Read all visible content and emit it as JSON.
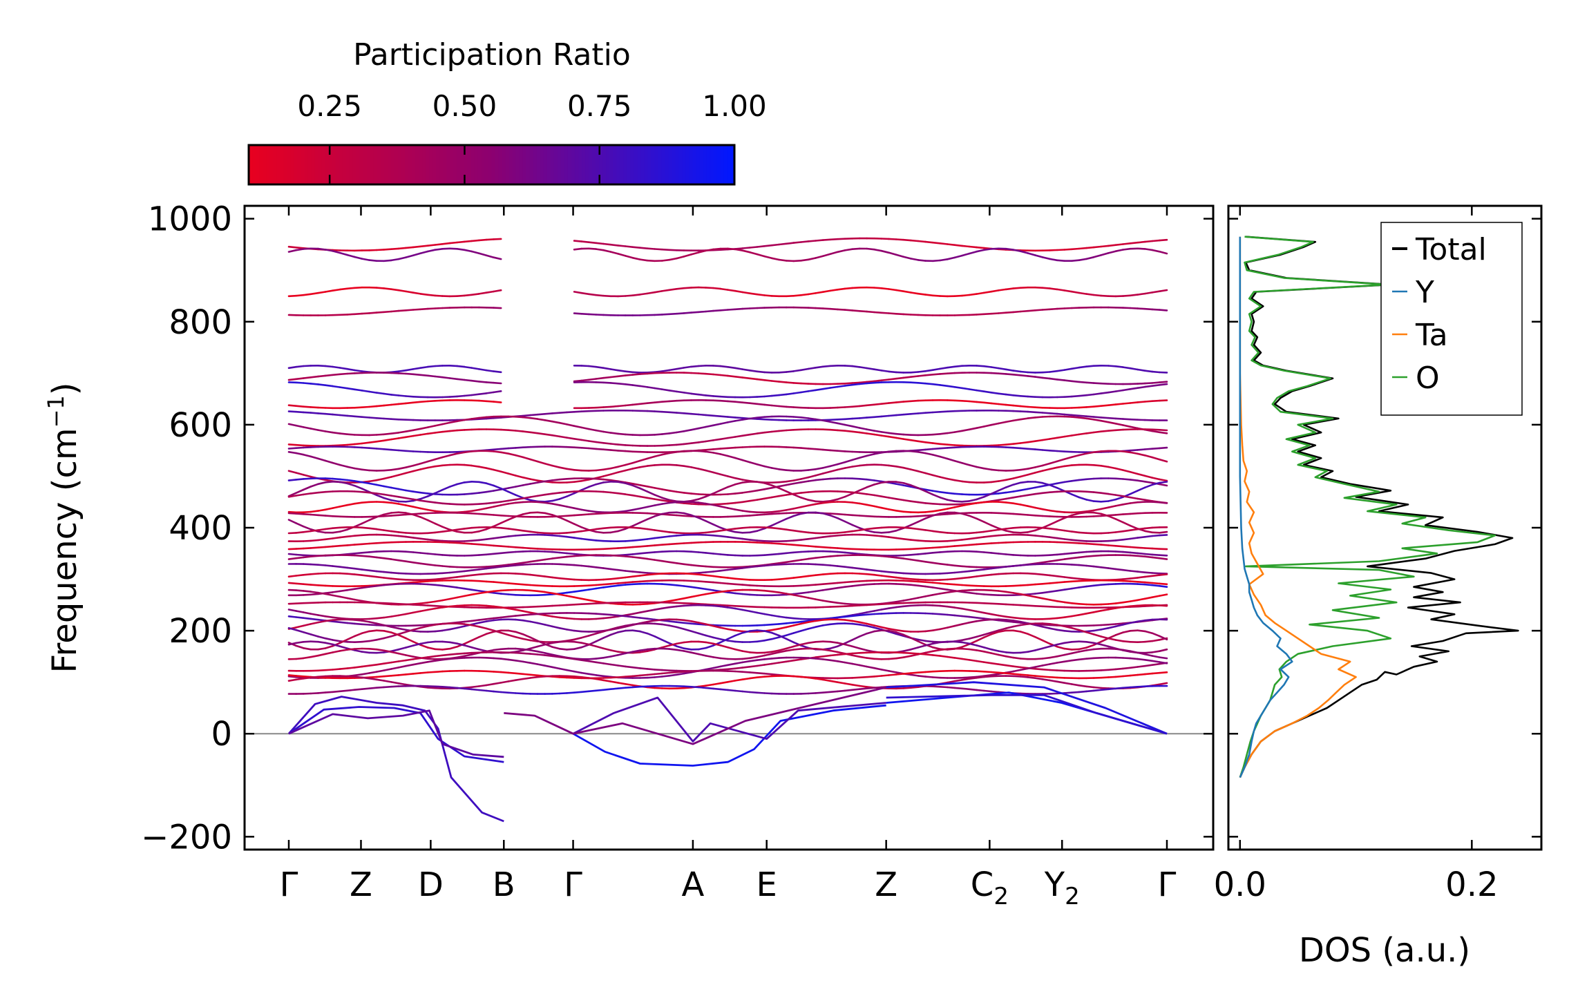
{
  "colorbar": {
    "title": "Participation Ratio",
    "ticks": [
      "0.25",
      "0.50",
      "0.75",
      "1.00"
    ],
    "tick_values": [
      0.25,
      0.5,
      0.75,
      1.0
    ],
    "range": [
      0.1,
      1.0
    ],
    "color_low": "#e8001f",
    "color_mid": "#8c0070",
    "color_high": "#0018ff"
  },
  "chart_data": [
    {
      "type": "line",
      "name": "phonon-band-structure",
      "ylabel": "Frequency (cm",
      "ylabel_sup": "−1",
      "ylabel_close": ")",
      "ylim": [
        -225,
        1025
      ],
      "yticks": [
        -200,
        0,
        200,
        400,
        600,
        800,
        1000
      ],
      "ytick_labels": [
        "−200",
        "0",
        "200",
        "400",
        "600",
        "800",
        "1000"
      ],
      "kpoint_labels": [
        {
          "main": "Γ",
          "sub": ""
        },
        {
          "main": "Z",
          "sub": ""
        },
        {
          "main": "D",
          "sub": ""
        },
        {
          "main": "B",
          "sub": ""
        },
        {
          "main": "Γ",
          "sub": ""
        },
        {
          "main": "A",
          "sub": ""
        },
        {
          "main": "E",
          "sub": ""
        },
        {
          "main": "Z",
          "sub": ""
        },
        {
          "main": "C",
          "sub": "2"
        },
        {
          "main": "Y",
          "sub": "2"
        },
        {
          "main": "Γ",
          "sub": ""
        }
      ],
      "kpoint_positions": [
        0.0,
        0.0822,
        0.1616,
        0.2449,
        0.3238,
        0.4602,
        0.5442,
        0.6803,
        0.7981,
        0.8806,
        1.0
      ],
      "path_breaks": [
        3
      ],
      "zero_line": 0,
      "optical_bands_cm1": [
        950,
        930,
        858,
        820,
        708,
        690,
        668,
        640,
        618,
        598,
        575,
        552,
        530,
        505,
        480,
        470,
        458,
        440,
        425,
        410,
        395,
        380,
        365,
        350,
        335,
        320,
        305,
        292,
        280,
        265,
        250,
        236,
        222,
        210,
        196,
        182,
        168,
        155,
        140,
        128,
        115,
        100,
        85
      ],
      "acoustic_branches": {
        "max_freq_cm1": [
          72,
          52,
          38
        ],
        "min_negative_cm1": [
          -170,
          -55,
          -45
        ],
        "gamma_a_dip_cm1": -62,
        "a_e_dip_cm1": -30
      }
    },
    {
      "type": "line",
      "name": "phonon-dos",
      "xlabel": "DOS (a.u.)",
      "xlim": [
        -0.01,
        0.26
      ],
      "xticks": [
        0.0,
        0.2
      ],
      "xtick_labels": [
        "0.0",
        "0.2"
      ],
      "ylim": [
        -225,
        1025
      ],
      "series": [
        {
          "name": "Total",
          "color": "#000000",
          "points": [
            [
              0.0,
              -85
            ],
            [
              0.004,
              -65
            ],
            [
              0.01,
              -40
            ],
            [
              0.018,
              -15
            ],
            [
              0.03,
              5
            ],
            [
              0.045,
              20
            ],
            [
              0.06,
              35
            ],
            [
              0.075,
              50
            ],
            [
              0.085,
              65
            ],
            [
              0.095,
              80
            ],
            [
              0.105,
              95
            ],
            [
              0.118,
              105
            ],
            [
              0.125,
              120
            ],
            [
              0.135,
              115
            ],
            [
              0.15,
              130
            ],
            [
              0.17,
              140
            ],
            [
              0.155,
              150
            ],
            [
              0.18,
              160
            ],
            [
              0.148,
              170
            ],
            [
              0.175,
              180
            ],
            [
              0.195,
              195
            ],
            [
              0.24,
              200
            ],
            [
              0.205,
              210
            ],
            [
              0.165,
              222
            ],
            [
              0.185,
              232
            ],
            [
              0.145,
              245
            ],
            [
              0.19,
              255
            ],
            [
              0.15,
              265
            ],
            [
              0.175,
              275
            ],
            [
              0.15,
              285
            ],
            [
              0.185,
              300
            ],
            [
              0.165,
              312
            ],
            [
              0.11,
              325
            ],
            [
              0.16,
              340
            ],
            [
              0.185,
              355
            ],
            [
              0.22,
              368
            ],
            [
              0.235,
              380
            ],
            [
              0.205,
              392
            ],
            [
              0.16,
              405
            ],
            [
              0.175,
              420
            ],
            [
              0.12,
              432
            ],
            [
              0.145,
              445
            ],
            [
              0.1,
              460
            ],
            [
              0.13,
              472
            ],
            [
              0.095,
              485
            ],
            [
              0.07,
              498
            ],
            [
              0.08,
              510
            ],
            [
              0.055,
              522
            ],
            [
              0.07,
              535
            ],
            [
              0.05,
              548
            ],
            [
              0.065,
              560
            ],
            [
              0.045,
              572
            ],
            [
              0.07,
              585
            ],
            [
              0.055,
              600
            ],
            [
              0.085,
              612
            ],
            [
              0.04,
              625
            ],
            [
              0.03,
              640
            ],
            [
              0.035,
              652
            ],
            [
              0.045,
              665
            ],
            [
              0.06,
              675
            ],
            [
              0.08,
              690
            ],
            [
              0.04,
              705
            ],
            [
              0.02,
              715
            ],
            [
              0.012,
              725
            ],
            [
              0.018,
              740
            ],
            [
              0.012,
              755
            ],
            [
              0.015,
              770
            ],
            [
              0.01,
              782
            ],
            [
              0.012,
              800
            ],
            [
              0.01,
              815
            ],
            [
              0.02,
              830
            ],
            [
              0.01,
              845
            ],
            [
              0.014,
              858
            ],
            [
              0.13,
              872
            ],
            [
              0.04,
              885
            ],
            [
              0.008,
              900
            ],
            [
              0.005,
              915
            ],
            [
              0.035,
              930
            ],
            [
              0.055,
              945
            ],
            [
              0.065,
              955
            ],
            [
              0.005,
              965
            ]
          ]
        },
        {
          "name": "Y",
          "color": "#1f77b4",
          "points": [
            [
              0.0,
              -85
            ],
            [
              0.004,
              -65
            ],
            [
              0.008,
              -40
            ],
            [
              0.01,
              -15
            ],
            [
              0.012,
              5
            ],
            [
              0.014,
              20
            ],
            [
              0.018,
              35
            ],
            [
              0.022,
              50
            ],
            [
              0.026,
              65
            ],
            [
              0.032,
              80
            ],
            [
              0.038,
              95
            ],
            [
              0.042,
              110
            ],
            [
              0.035,
              125
            ],
            [
              0.045,
              140
            ],
            [
              0.04,
              155
            ],
            [
              0.032,
              170
            ],
            [
              0.035,
              185
            ],
            [
              0.028,
              200
            ],
            [
              0.02,
              215
            ],
            [
              0.015,
              230
            ],
            [
              0.012,
              245
            ],
            [
              0.01,
              260
            ],
            [
              0.008,
              275
            ],
            [
              0.008,
              290
            ],
            [
              0.006,
              305
            ],
            [
              0.004,
              320
            ],
            [
              0.003,
              340
            ],
            [
              0.002,
              360
            ],
            [
              0.001,
              400
            ],
            [
              0.0,
              500
            ],
            [
              0.0,
              965
            ]
          ]
        },
        {
          "name": "Ta",
          "color": "#ff7f0e",
          "points": [
            [
              0.0,
              -85
            ],
            [
              0.004,
              -65
            ],
            [
              0.01,
              -40
            ],
            [
              0.018,
              -15
            ],
            [
              0.03,
              5
            ],
            [
              0.045,
              20
            ],
            [
              0.058,
              35
            ],
            [
              0.068,
              50
            ],
            [
              0.076,
              65
            ],
            [
              0.083,
              80
            ],
            [
              0.09,
              95
            ],
            [
              0.1,
              110
            ],
            [
              0.085,
              125
            ],
            [
              0.095,
              140
            ],
            [
              0.07,
              155
            ],
            [
              0.06,
              170
            ],
            [
              0.05,
              185
            ],
            [
              0.04,
              200
            ],
            [
              0.03,
              215
            ],
            [
              0.022,
              230
            ],
            [
              0.018,
              250
            ],
            [
              0.012,
              270
            ],
            [
              0.008,
              290
            ],
            [
              0.02,
              310
            ],
            [
              0.015,
              330
            ],
            [
              0.01,
              350
            ],
            [
              0.008,
              370
            ],
            [
              0.012,
              390
            ],
            [
              0.008,
              410
            ],
            [
              0.012,
              430
            ],
            [
              0.006,
              450
            ],
            [
              0.008,
              470
            ],
            [
              0.004,
              490
            ],
            [
              0.006,
              510
            ],
            [
              0.003,
              530
            ],
            [
              0.002,
              560
            ],
            [
              0.001,
              600
            ],
            [
              0.0,
              700
            ],
            [
              0.0,
              965
            ]
          ]
        },
        {
          "name": "O",
          "color": "#2ca02c",
          "points": [
            [
              0.0,
              -85
            ],
            [
              0.003,
              -65
            ],
            [
              0.006,
              -40
            ],
            [
              0.009,
              -15
            ],
            [
              0.012,
              5
            ],
            [
              0.015,
              20
            ],
            [
              0.018,
              35
            ],
            [
              0.022,
              50
            ],
            [
              0.026,
              65
            ],
            [
              0.028,
              80
            ],
            [
              0.03,
              95
            ],
            [
              0.036,
              110
            ],
            [
              0.034,
              125
            ],
            [
              0.04,
              140
            ],
            [
              0.05,
              155
            ],
            [
              0.08,
              170
            ],
            [
              0.13,
              185
            ],
            [
              0.11,
              200
            ],
            [
              0.06,
              212
            ],
            [
              0.12,
              225
            ],
            [
              0.08,
              240
            ],
            [
              0.135,
              255
            ],
            [
              0.095,
              268
            ],
            [
              0.13,
              280
            ],
            [
              0.085,
              292
            ],
            [
              0.15,
              305
            ],
            [
              0.12,
              318
            ],
            [
              0.005,
              325
            ],
            [
              0.12,
              335
            ],
            [
              0.17,
              350
            ],
            [
              0.14,
              360
            ],
            [
              0.205,
              372
            ],
            [
              0.22,
              385
            ],
            [
              0.18,
              395
            ],
            [
              0.14,
              408
            ],
            [
              0.16,
              420
            ],
            [
              0.11,
              432
            ],
            [
              0.135,
              445
            ],
            [
              0.09,
              458
            ],
            [
              0.12,
              470
            ],
            [
              0.09,
              485
            ],
            [
              0.065,
              498
            ],
            [
              0.075,
              510
            ],
            [
              0.05,
              522
            ],
            [
              0.065,
              535
            ],
            [
              0.045,
              548
            ],
            [
              0.06,
              560
            ],
            [
              0.04,
              572
            ],
            [
              0.065,
              585
            ],
            [
              0.05,
              600
            ],
            [
              0.08,
              612
            ],
            [
              0.035,
              625
            ],
            [
              0.028,
              640
            ],
            [
              0.032,
              652
            ],
            [
              0.042,
              665
            ],
            [
              0.058,
              675
            ],
            [
              0.078,
              690
            ],
            [
              0.038,
              705
            ],
            [
              0.018,
              715
            ],
            [
              0.01,
              725
            ],
            [
              0.016,
              740
            ],
            [
              0.01,
              755
            ],
            [
              0.013,
              770
            ],
            [
              0.008,
              782
            ],
            [
              0.01,
              800
            ],
            [
              0.008,
              815
            ],
            [
              0.018,
              830
            ],
            [
              0.008,
              845
            ],
            [
              0.012,
              858
            ],
            [
              0.128,
              872
            ],
            [
              0.038,
              885
            ],
            [
              0.006,
              900
            ],
            [
              0.004,
              915
            ],
            [
              0.033,
              930
            ],
            [
              0.053,
              945
            ],
            [
              0.063,
              955
            ],
            [
              0.004,
              965
            ]
          ]
        }
      ],
      "legend": {
        "entries": [
          "Total",
          "Y",
          "Ta",
          "O"
        ],
        "placement": "top-right"
      }
    }
  ]
}
